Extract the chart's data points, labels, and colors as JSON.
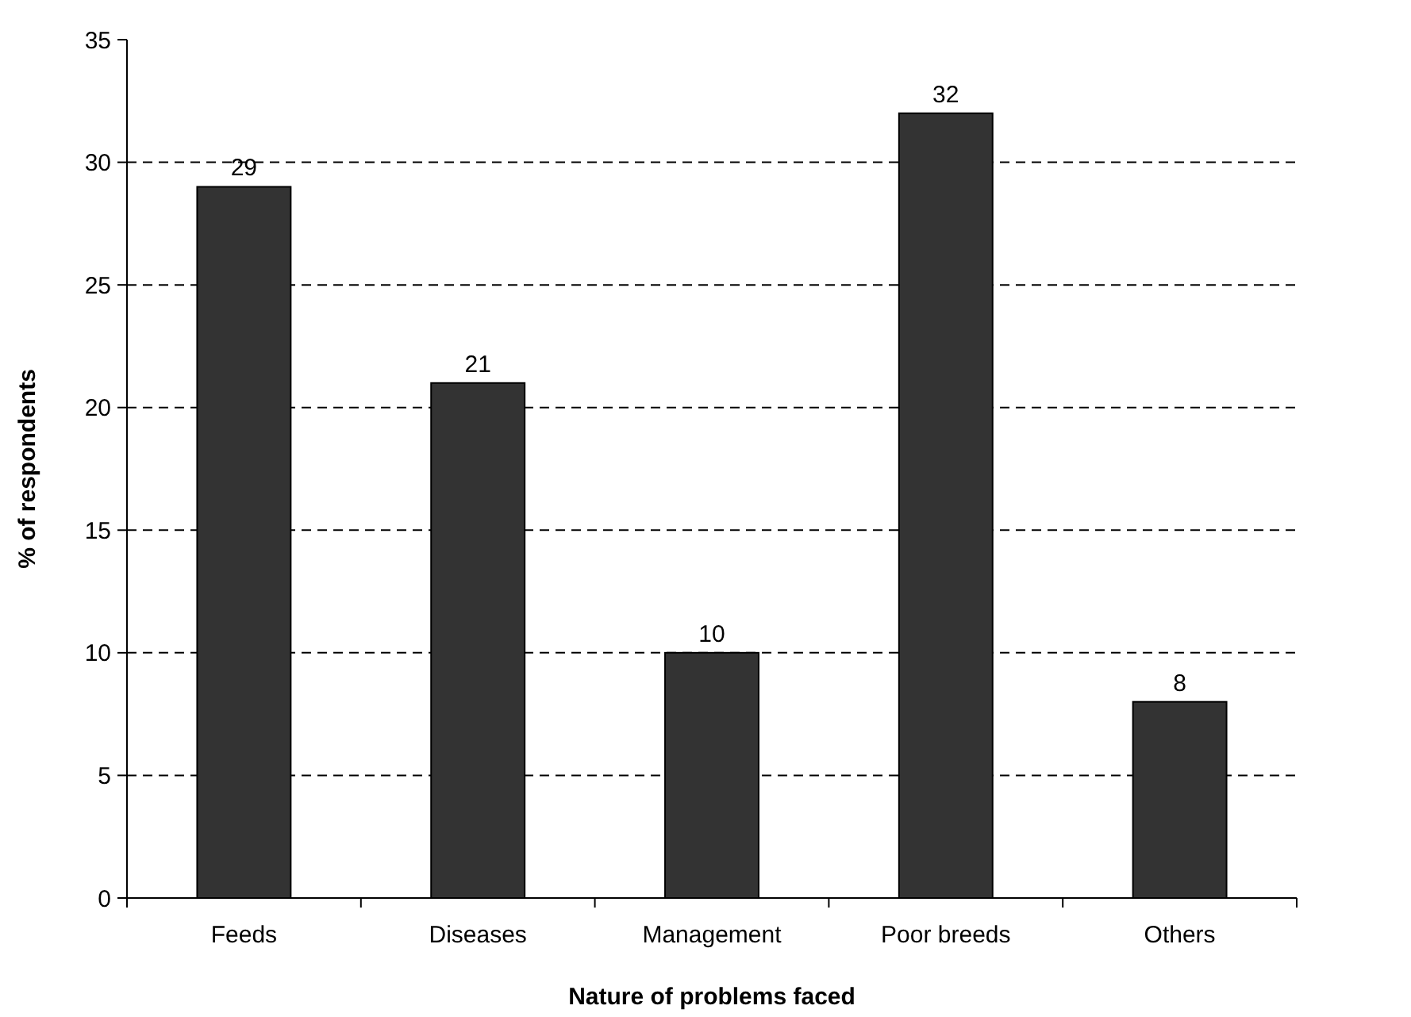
{
  "chart_data": {
    "type": "bar",
    "xlabel": "Nature of problems faced",
    "ylabel": "% of respondents",
    "categories": [
      "Feeds",
      "Diseases",
      "Management",
      "Poor breeds",
      "Others"
    ],
    "values": [
      29,
      21,
      10,
      32,
      8
    ],
    "color": "#333333",
    "ylim": [
      0,
      35
    ],
    "yticks": [
      0,
      5,
      10,
      15,
      20,
      25,
      30,
      35
    ],
    "grid": "y",
    "data_labels": true
  }
}
